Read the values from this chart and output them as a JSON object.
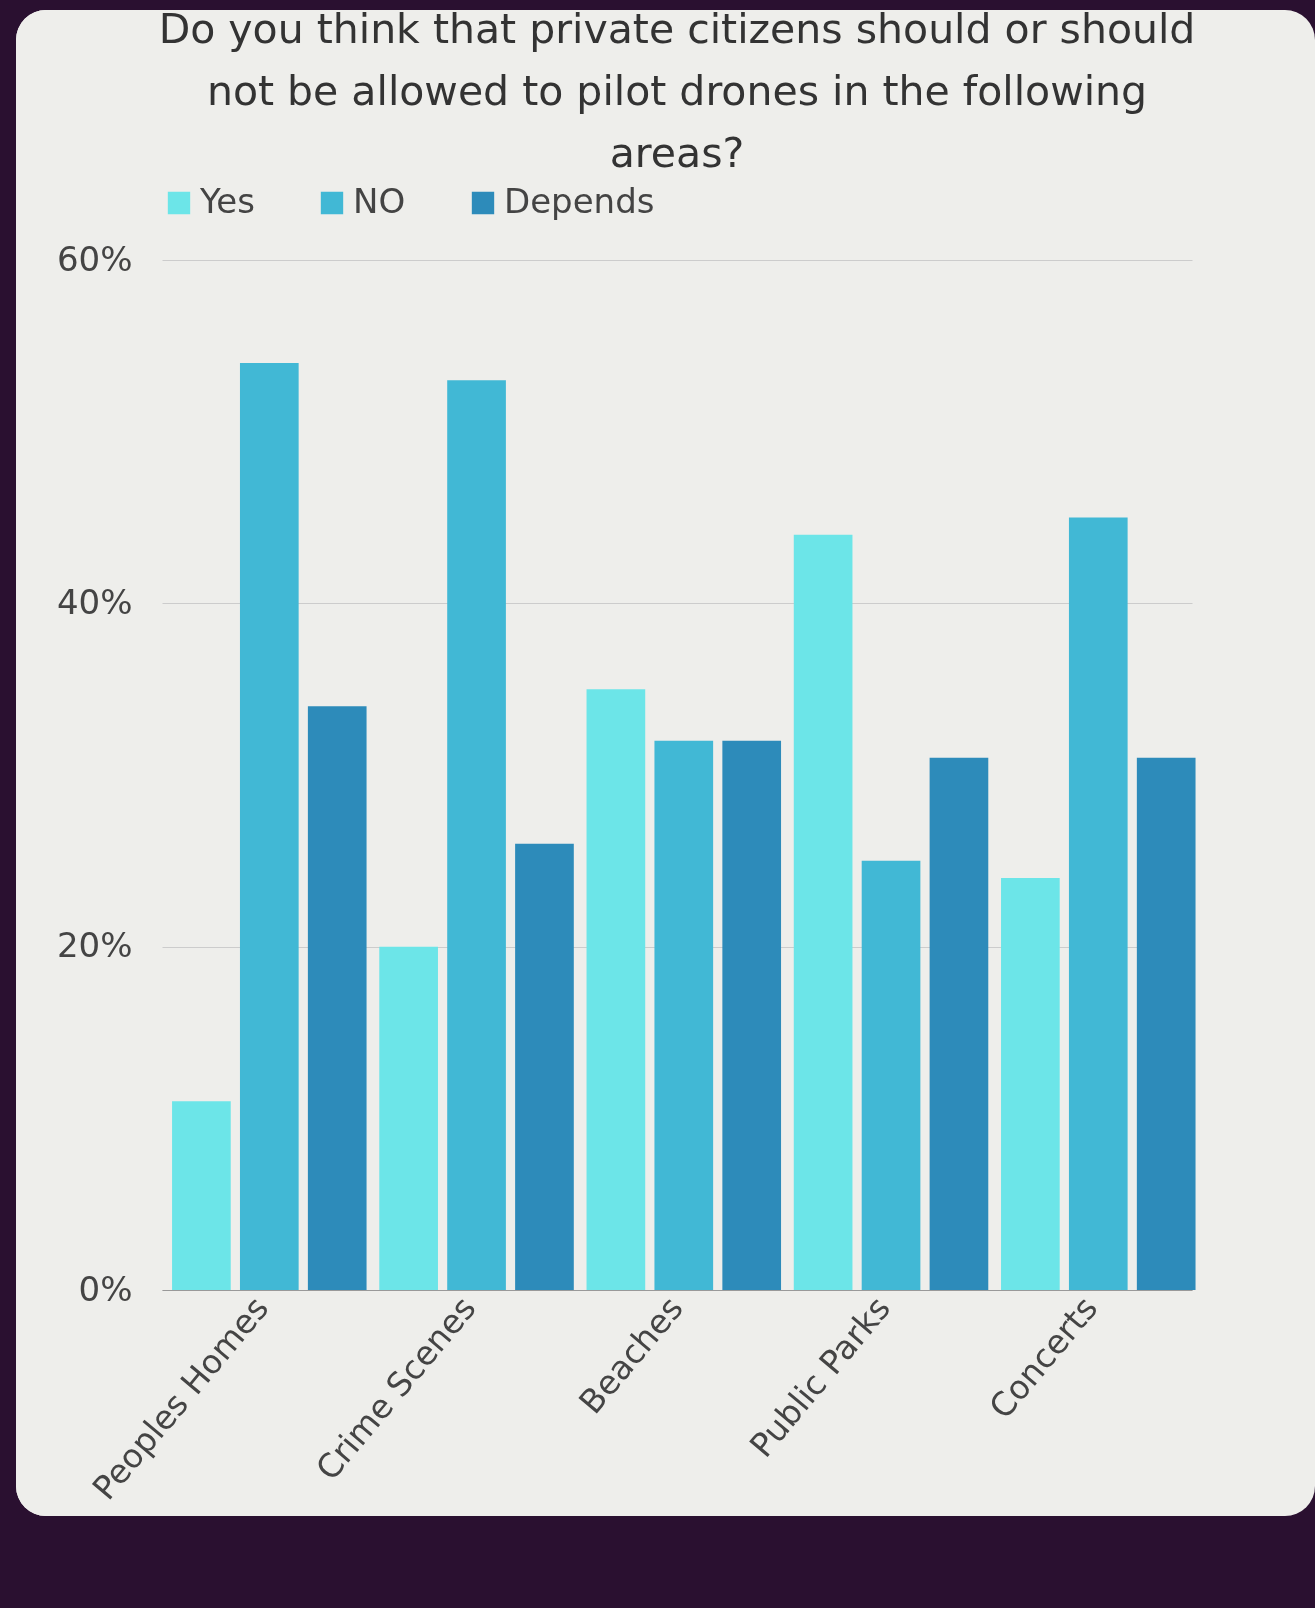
{
  "chart_data": {
    "type": "bar",
    "title": "Do you think that private citizens should or should not be allowed to pilot drones in the following areas?",
    "categories": [
      "Peoples Homes",
      "Crime Scenes",
      "Beaches",
      "Public Parks",
      "Concerts"
    ],
    "series": [
      {
        "name": "Yes",
        "color": "#6ce5e8",
        "values": [
          11,
          20,
          35,
          44,
          24
        ]
      },
      {
        "name": "NO",
        "color": "#41b8d5",
        "values": [
          54,
          53,
          32,
          25,
          45
        ]
      },
      {
        "name": "Depends",
        "color": "#2d8bba",
        "values": [
          34,
          26,
          32,
          31,
          31
        ]
      }
    ],
    "ylim": [
      0,
      60
    ],
    "yticks": [
      {
        "value": 0,
        "label": "0%"
      },
      {
        "value": 20,
        "label": "20%"
      },
      {
        "value": 40,
        "label": "40%"
      },
      {
        "value": 60,
        "label": "60%"
      }
    ],
    "grid": "y",
    "legend": "top"
  }
}
